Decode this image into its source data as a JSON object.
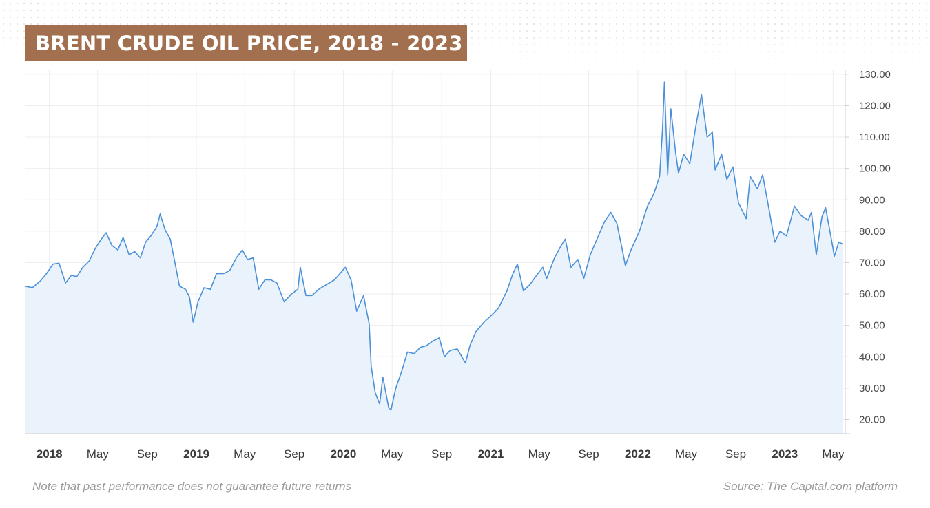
{
  "title": "BRENT CRUDE OIL PRICE, 2018 - 2023",
  "footer": {
    "note": "Note that past performance does not guarantee future returns",
    "source": "Source: The Capital.com platform"
  },
  "colors": {
    "banner": "#a2704f",
    "line": "#4a90d9",
    "area_fill": "#eaf2fb",
    "grid": "#eeeeee",
    "last_price_line": "#8fb8e8"
  },
  "chart_data": {
    "type": "area",
    "title": "BRENT CRUDE OIL PRICE, 2018 - 2023",
    "xlabel": "",
    "ylabel": "",
    "y_axis_position": "right",
    "ylim": [
      15.5,
      131.5
    ],
    "xlim": [
      "2017-11-01",
      "2023-05-31"
    ],
    "grid": true,
    "y_ticks": [
      "130.00",
      "120.00",
      "110.00",
      "100.00",
      "90.00",
      "80.00",
      "70.00",
      "60.00",
      "50.00",
      "40.00",
      "30.00",
      "20.00"
    ],
    "x_ticks": [
      {
        "date": "2018-01-01",
        "label": "2018",
        "major": true
      },
      {
        "date": "2018-05-01",
        "label": "May",
        "major": false
      },
      {
        "date": "2018-09-01",
        "label": "Sep",
        "major": false
      },
      {
        "date": "2019-01-01",
        "label": "2019",
        "major": true
      },
      {
        "date": "2019-05-01",
        "label": "May",
        "major": false
      },
      {
        "date": "2019-09-01",
        "label": "Sep",
        "major": false
      },
      {
        "date": "2020-01-01",
        "label": "2020",
        "major": true
      },
      {
        "date": "2020-05-01",
        "label": "May",
        "major": false
      },
      {
        "date": "2020-09-01",
        "label": "Sep",
        "major": false
      },
      {
        "date": "2021-01-01",
        "label": "2021",
        "major": true
      },
      {
        "date": "2021-05-01",
        "label": "May",
        "major": false
      },
      {
        "date": "2021-09-01",
        "label": "Sep",
        "major": false
      },
      {
        "date": "2022-01-01",
        "label": "2022",
        "major": true
      },
      {
        "date": "2022-05-01",
        "label": "May",
        "major": false
      },
      {
        "date": "2022-09-01",
        "label": "Sep",
        "major": false
      },
      {
        "date": "2023-01-01",
        "label": "2023",
        "major": true
      },
      {
        "date": "2023-05-01",
        "label": "May",
        "major": false
      }
    ],
    "last_price": 75.9,
    "series": [
      {
        "points": [
          [
            "2017-11-01",
            62.5
          ],
          [
            "2017-11-20",
            62.0
          ],
          [
            "2017-12-10",
            64.2
          ],
          [
            "2017-12-25",
            66.5
          ],
          [
            "2018-01-10",
            69.5
          ],
          [
            "2018-01-25",
            69.8
          ],
          [
            "2018-02-10",
            63.5
          ],
          [
            "2018-02-25",
            66.0
          ],
          [
            "2018-03-10",
            65.5
          ],
          [
            "2018-03-25",
            68.5
          ],
          [
            "2018-04-10",
            70.5
          ],
          [
            "2018-04-25",
            74.5
          ],
          [
            "2018-05-10",
            77.5
          ],
          [
            "2018-05-22",
            79.5
          ],
          [
            "2018-06-05",
            75.5
          ],
          [
            "2018-06-20",
            74.0
          ],
          [
            "2018-07-03",
            78.0
          ],
          [
            "2018-07-18",
            72.5
          ],
          [
            "2018-08-01",
            73.5
          ],
          [
            "2018-08-15",
            71.5
          ],
          [
            "2018-08-28",
            76.5
          ],
          [
            "2018-09-10",
            78.5
          ],
          [
            "2018-09-25",
            81.5
          ],
          [
            "2018-10-03",
            85.5
          ],
          [
            "2018-10-15",
            80.5
          ],
          [
            "2018-10-28",
            77.5
          ],
          [
            "2018-11-08",
            70.5
          ],
          [
            "2018-11-20",
            62.5
          ],
          [
            "2018-12-05",
            61.5
          ],
          [
            "2018-12-15",
            59.0
          ],
          [
            "2018-12-24",
            51.0
          ],
          [
            "2019-01-05",
            57.5
          ],
          [
            "2019-01-20",
            62.0
          ],
          [
            "2019-02-05",
            61.5
          ],
          [
            "2019-02-20",
            66.5
          ],
          [
            "2019-03-10",
            66.5
          ],
          [
            "2019-03-25",
            67.5
          ],
          [
            "2019-04-10",
            71.5
          ],
          [
            "2019-04-25",
            74.0
          ],
          [
            "2019-05-08",
            71.0
          ],
          [
            "2019-05-22",
            71.5
          ],
          [
            "2019-06-05",
            61.5
          ],
          [
            "2019-06-20",
            64.5
          ],
          [
            "2019-07-05",
            64.5
          ],
          [
            "2019-07-20",
            63.5
          ],
          [
            "2019-08-07",
            57.5
          ],
          [
            "2019-08-25",
            60.0
          ],
          [
            "2019-09-10",
            61.5
          ],
          [
            "2019-09-16",
            68.5
          ],
          [
            "2019-09-30",
            59.5
          ],
          [
            "2019-10-15",
            59.5
          ],
          [
            "2019-11-01",
            61.5
          ],
          [
            "2019-11-20",
            63.0
          ],
          [
            "2019-12-10",
            64.5
          ],
          [
            "2020-01-06",
            68.5
          ],
          [
            "2020-01-20",
            64.5
          ],
          [
            "2020-02-03",
            54.5
          ],
          [
            "2020-02-20",
            59.5
          ],
          [
            "2020-03-05",
            50.5
          ],
          [
            "2020-03-10",
            37.0
          ],
          [
            "2020-03-20",
            28.5
          ],
          [
            "2020-03-31",
            25.0
          ],
          [
            "2020-04-08",
            33.5
          ],
          [
            "2020-04-22",
            24.0
          ],
          [
            "2020-04-28",
            23.0
          ],
          [
            "2020-05-10",
            30.0
          ],
          [
            "2020-05-25",
            35.5
          ],
          [
            "2020-06-08",
            41.5
          ],
          [
            "2020-06-25",
            41.0
          ],
          [
            "2020-07-10",
            43.0
          ],
          [
            "2020-07-25",
            43.5
          ],
          [
            "2020-08-10",
            45.0
          ],
          [
            "2020-08-26",
            46.0
          ],
          [
            "2020-09-08",
            40.0
          ],
          [
            "2020-09-22",
            42.0
          ],
          [
            "2020-10-10",
            42.5
          ],
          [
            "2020-10-30",
            38.0
          ],
          [
            "2020-11-10",
            43.5
          ],
          [
            "2020-11-25",
            48.0
          ],
          [
            "2020-12-15",
            51.0
          ],
          [
            "2021-01-05",
            53.5
          ],
          [
            "2021-01-20",
            55.5
          ],
          [
            "2021-02-10",
            61.0
          ],
          [
            "2021-02-25",
            66.5
          ],
          [
            "2021-03-08",
            69.5
          ],
          [
            "2021-03-23",
            61.0
          ],
          [
            "2021-04-08",
            63.0
          ],
          [
            "2021-04-22",
            65.5
          ],
          [
            "2021-05-10",
            68.5
          ],
          [
            "2021-05-20",
            65.0
          ],
          [
            "2021-06-08",
            71.5
          ],
          [
            "2021-06-25",
            75.5
          ],
          [
            "2021-07-05",
            77.5
          ],
          [
            "2021-07-19",
            68.5
          ],
          [
            "2021-08-05",
            71.0
          ],
          [
            "2021-08-20",
            65.0
          ],
          [
            "2021-09-05",
            72.5
          ],
          [
            "2021-09-25",
            78.5
          ],
          [
            "2021-10-10",
            83.0
          ],
          [
            "2021-10-26",
            86.0
          ],
          [
            "2021-11-10",
            82.5
          ],
          [
            "2021-11-26",
            72.5
          ],
          [
            "2021-12-01",
            69.0
          ],
          [
            "2021-12-15",
            74.0
          ],
          [
            "2022-01-05",
            80.0
          ],
          [
            "2022-01-25",
            88.0
          ],
          [
            "2022-02-10",
            92.0
          ],
          [
            "2022-02-24",
            97.5
          ],
          [
            "2022-03-03",
            112.0
          ],
          [
            "2022-03-08",
            127.5
          ],
          [
            "2022-03-16",
            98.0
          ],
          [
            "2022-03-24",
            119.0
          ],
          [
            "2022-04-05",
            105.0
          ],
          [
            "2022-04-12",
            98.5
          ],
          [
            "2022-04-25",
            104.5
          ],
          [
            "2022-05-10",
            101.5
          ],
          [
            "2022-05-25",
            113.5
          ],
          [
            "2022-06-08",
            123.5
          ],
          [
            "2022-06-22",
            110.0
          ],
          [
            "2022-07-05",
            111.5
          ],
          [
            "2022-07-12",
            99.5
          ],
          [
            "2022-07-28",
            104.5
          ],
          [
            "2022-08-10",
            96.5
          ],
          [
            "2022-08-25",
            100.5
          ],
          [
            "2022-09-08",
            89.0
          ],
          [
            "2022-09-27",
            84.0
          ],
          [
            "2022-10-07",
            97.5
          ],
          [
            "2022-10-25",
            93.5
          ],
          [
            "2022-11-07",
            98.0
          ],
          [
            "2022-11-22",
            87.5
          ],
          [
            "2022-12-07",
            76.5
          ],
          [
            "2022-12-20",
            80.0
          ],
          [
            "2023-01-05",
            78.5
          ],
          [
            "2023-01-25",
            88.0
          ],
          [
            "2023-02-10",
            85.0
          ],
          [
            "2023-02-28",
            83.5
          ],
          [
            "2023-03-08",
            86.0
          ],
          [
            "2023-03-20",
            72.5
          ],
          [
            "2023-04-03",
            84.5
          ],
          [
            "2023-04-12",
            87.5
          ],
          [
            "2023-04-25",
            78.5
          ],
          [
            "2023-05-04",
            72.0
          ],
          [
            "2023-05-15",
            76.5
          ],
          [
            "2023-05-25",
            75.9
          ]
        ]
      }
    ]
  }
}
